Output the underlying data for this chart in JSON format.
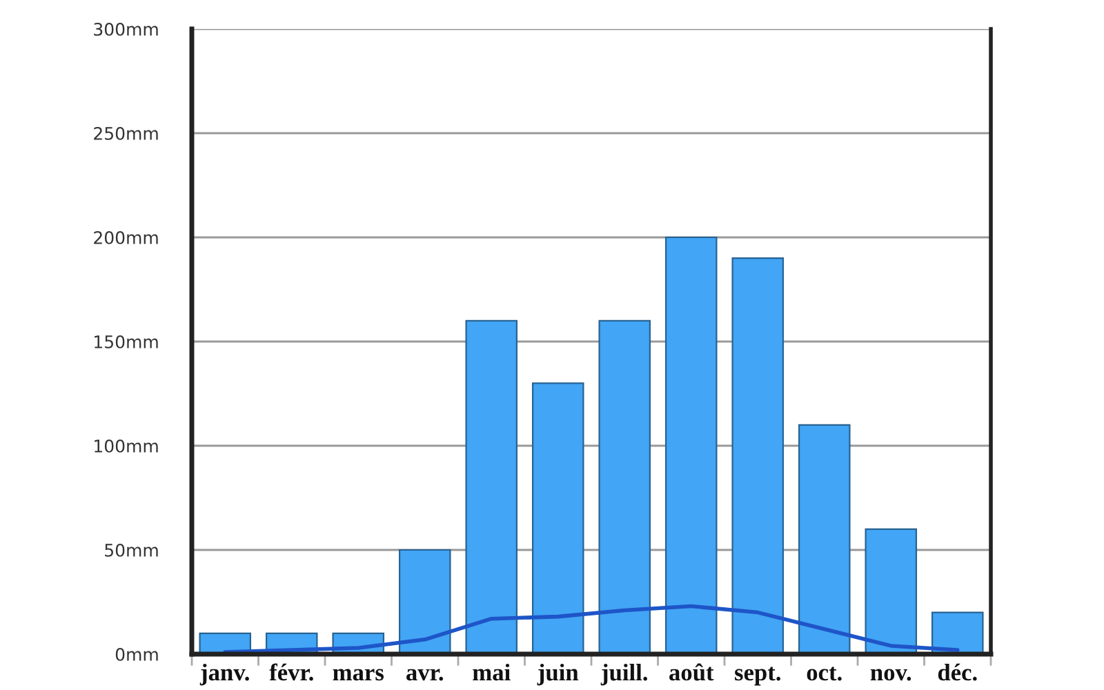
{
  "chart_data": {
    "type": "bar",
    "categories": [
      "janv.",
      "févr.",
      "mars",
      "avr.",
      "mai",
      "juin",
      "juill.",
      "août",
      "sept.",
      "oct.",
      "nov.",
      "déc."
    ],
    "series": [
      {
        "color": "#42a5f5",
        "values": [
          10,
          10,
          10,
          50,
          160,
          130,
          160,
          200,
          190,
          110,
          60,
          20
        ]
      },
      {
        "type": "line",
        "color": "#1e55c8",
        "values": [
          1,
          2,
          3,
          7,
          17,
          18,
          21,
          23,
          20,
          12,
          4,
          2
        ]
      }
    ],
    "ylim": [
      0,
      300
    ],
    "yticks": [
      {
        "value": 0,
        "label": "0mm"
      },
      {
        "value": 50,
        "label": "50mm"
      },
      {
        "value": 100,
        "label": "100mm"
      },
      {
        "value": 150,
        "label": "150mm"
      },
      {
        "value": 200,
        "label": "200mm"
      },
      {
        "value": 250,
        "label": "250mm"
      },
      {
        "value": 300,
        "label": "300mm"
      }
    ],
    "grid": "y"
  }
}
